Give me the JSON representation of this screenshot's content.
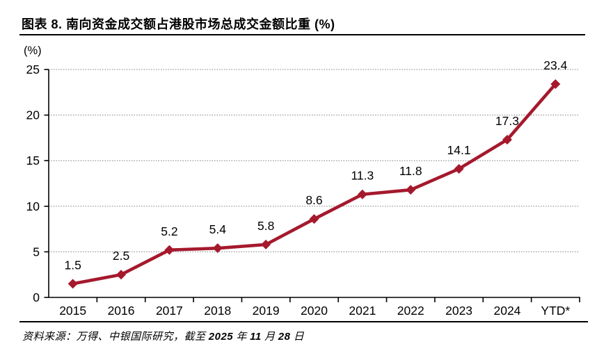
{
  "header": {
    "title": "图表 8. 南向资金成交额占港股市场总成交金额比重 (%)"
  },
  "chart_data": {
    "type": "line",
    "title": "图表 8. 南向资金成交额占港股市场总成交金额比重 (%)",
    "categories": [
      "2015",
      "2016",
      "2017",
      "2018",
      "2019",
      "2020",
      "2021",
      "2022",
      "2023",
      "2024",
      "YTD*"
    ],
    "values": [
      1.5,
      2.5,
      5.2,
      5.4,
      5.8,
      8.6,
      11.3,
      11.8,
      14.1,
      17.3,
      23.4
    ],
    "ylabel": "(%)",
    "ylim": [
      0,
      25
    ],
    "ytick_step": 5,
    "yticks": [
      0,
      5,
      10,
      15,
      20,
      25
    ],
    "grid": "horizontal-dotted",
    "legend": "none",
    "data_labels": true,
    "marker": "diamond",
    "colors": {
      "line": "#A5192D",
      "marker": "#A5192D",
      "axis": "#000000",
      "gridline": "#7f7f7f",
      "text": "#000000"
    }
  },
  "footer": {
    "source_segments": [
      {
        "text": "资料来源：万得、中银国际研究，截至 ",
        "bold": false
      },
      {
        "text": "2025",
        "bold": true
      },
      {
        "text": " 年 ",
        "bold": false
      },
      {
        "text": "11",
        "bold": true
      },
      {
        "text": " 月 ",
        "bold": false
      },
      {
        "text": "28",
        "bold": true
      },
      {
        "text": " 日",
        "bold": false
      }
    ]
  }
}
